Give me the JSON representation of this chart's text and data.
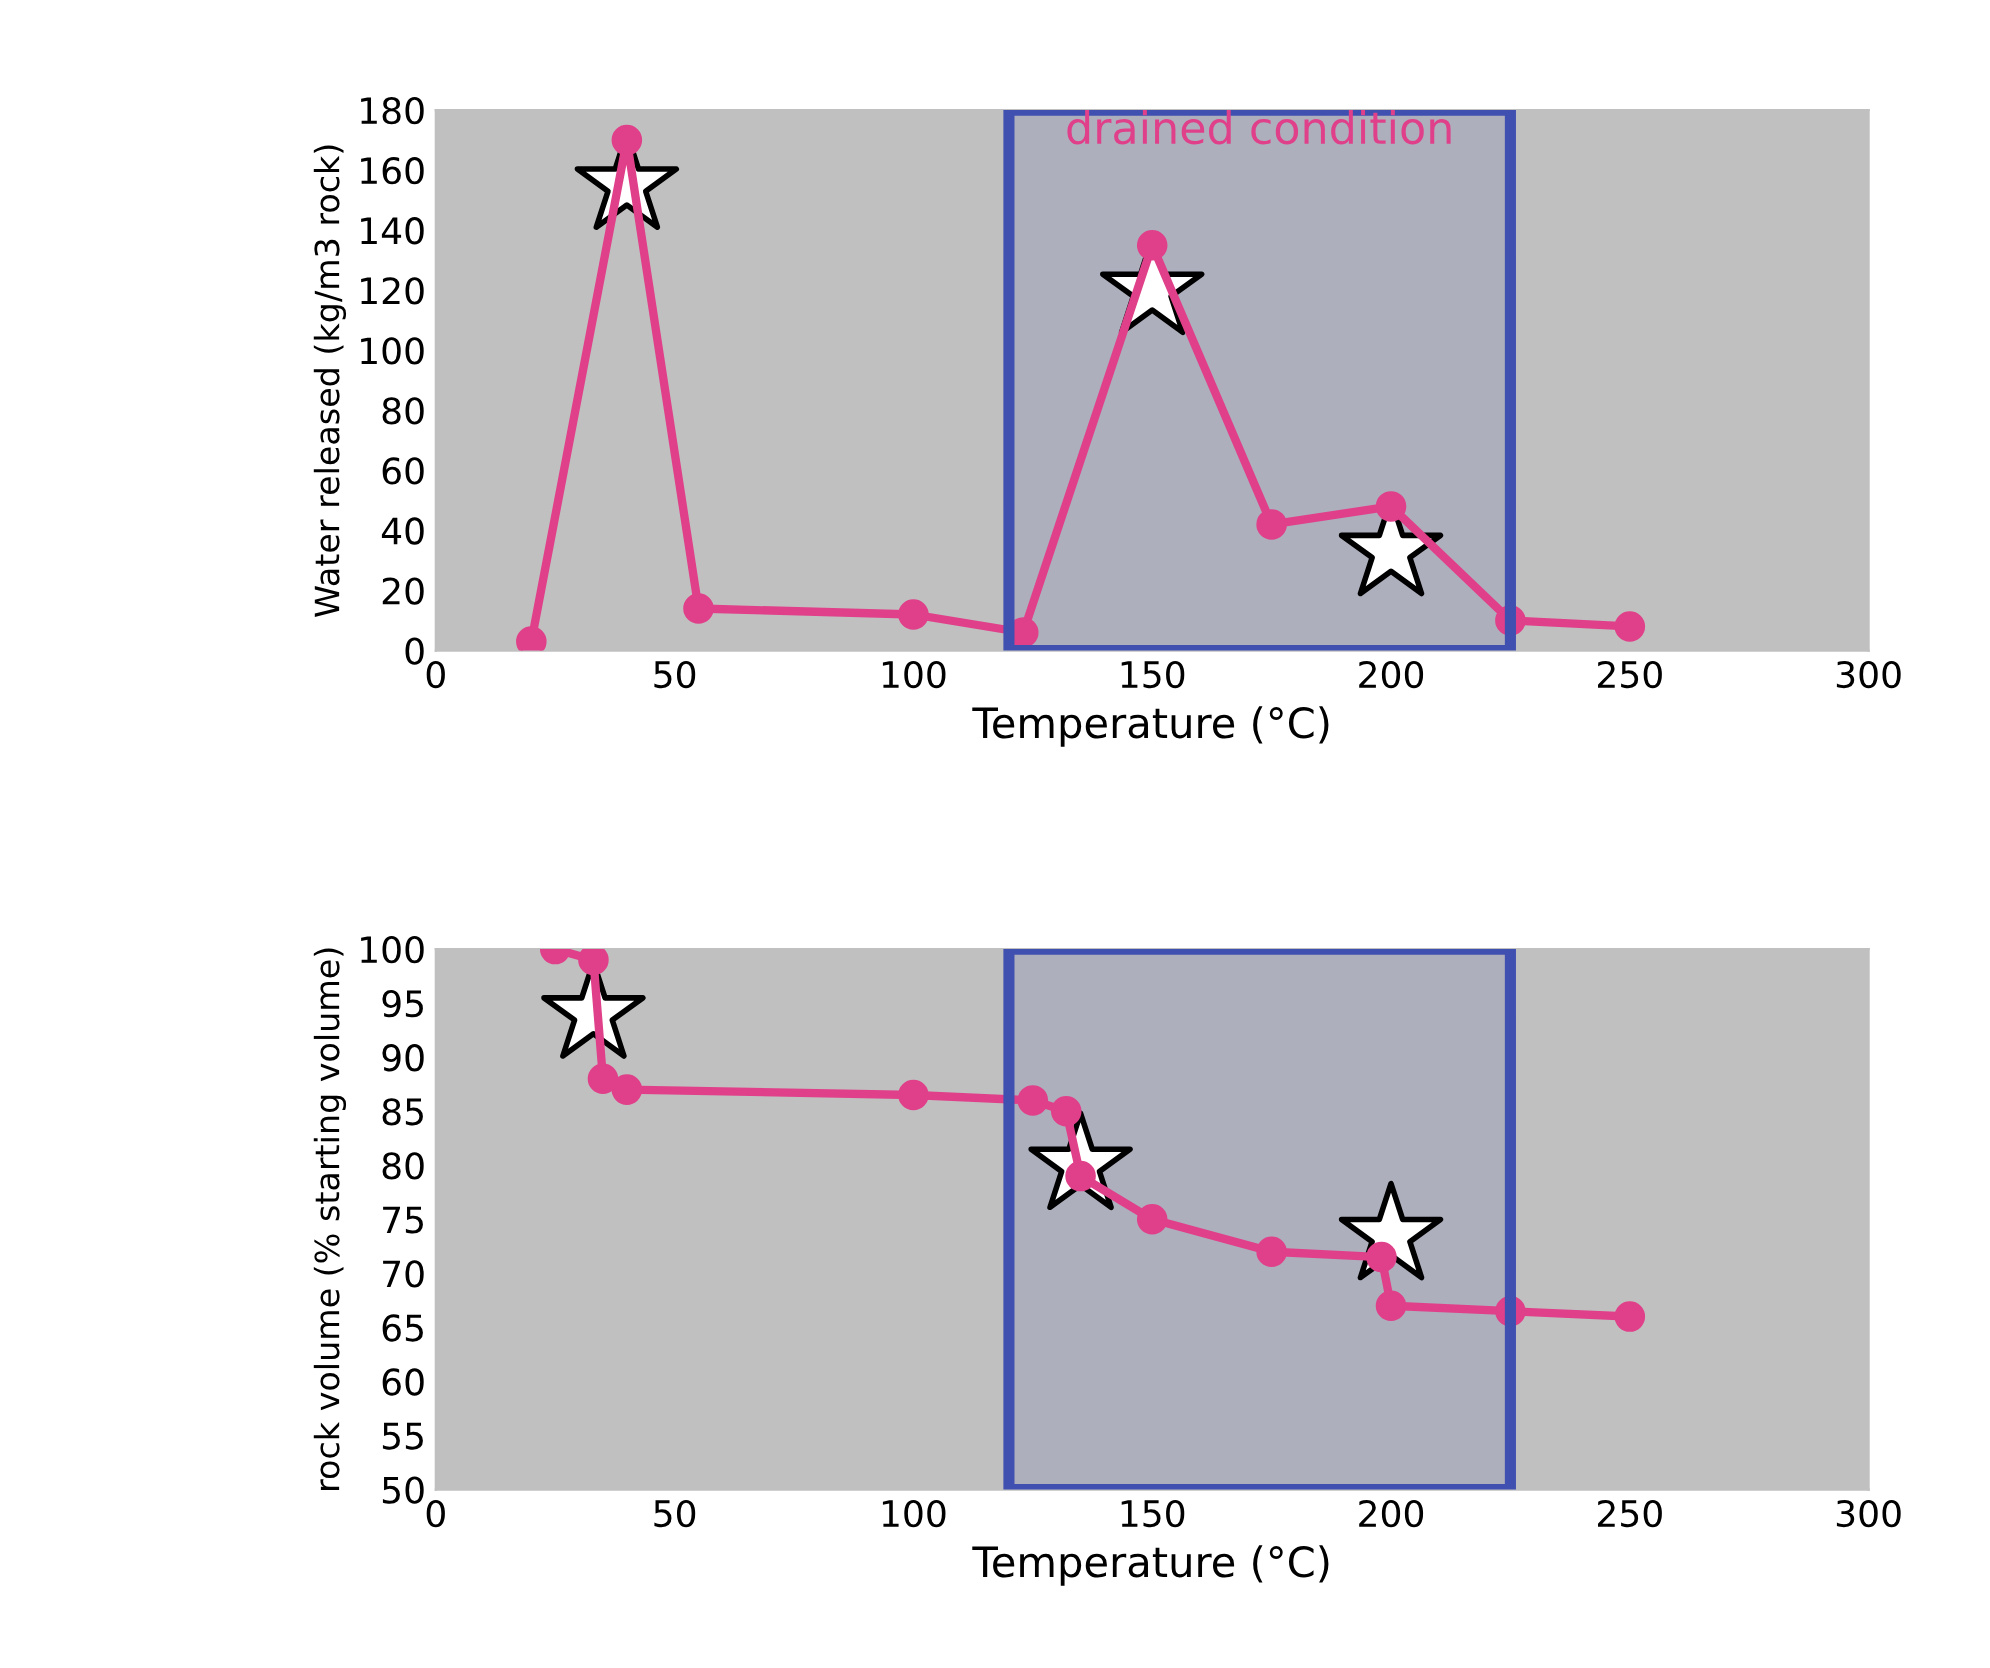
{
  "chart_data": [
    {
      "type": "line",
      "xlabel": "Temperature (°C)",
      "ylabel": "Water released (kg/m3 rock)",
      "xlim": [
        0,
        300
      ],
      "xticks": [
        0,
        50,
        100,
        150,
        200,
        250,
        300
      ],
      "ylim": [
        0,
        180
      ],
      "yticks": [
        0,
        20,
        40,
        60,
        80,
        100,
        120,
        140,
        160,
        180
      ],
      "grid": false,
      "legend": false,
      "series": [
        {
          "color": "#e0408a",
          "marker": "circle",
          "x": [
            20,
            40,
            55,
            100,
            123,
            150,
            175,
            200,
            225,
            250
          ],
          "values": [
            3,
            170,
            14,
            12,
            6,
            135,
            42,
            48,
            10,
            8
          ]
        },
        {
          "type": "scatter",
          "color": "#ffffff",
          "marker": "star",
          "x": [
            40,
            150,
            200
          ],
          "values": [
            155,
            120,
            33
          ]
        }
      ],
      "bands": [
        {
          "axis": "x",
          "from": 120,
          "to": 225,
          "label": "drained condition",
          "color": "#4050b0"
        }
      ]
    },
    {
      "type": "line",
      "xlabel": "Temperature (°C)",
      "ylabel": "rock volume (% starting volume)",
      "xlim": [
        0,
        300
      ],
      "xticks": [
        0,
        50,
        100,
        150,
        200,
        250,
        300
      ],
      "ylim": [
        50,
        100
      ],
      "yticks": [
        50,
        55,
        60,
        65,
        70,
        75,
        80,
        85,
        90,
        95,
        100
      ],
      "grid": false,
      "legend": false,
      "series": [
        {
          "color": "#e0408a",
          "marker": "circle",
          "x": [
            25,
            33,
            35,
            40,
            100,
            125,
            132,
            135,
            150,
            175,
            198,
            200,
            225,
            250
          ],
          "values": [
            100,
            99,
            88,
            87,
            86.5,
            86,
            85,
            79,
            75,
            72,
            71.5,
            67,
            66.5,
            66
          ]
        },
        {
          "type": "scatter",
          "color": "#ffffff",
          "marker": "star",
          "x": [
            33,
            135,
            200
          ],
          "values": [
            94,
            80,
            73.5
          ]
        }
      ],
      "bands": [
        {
          "axis": "x",
          "from": 120,
          "to": 225,
          "color": "#4050b0"
        }
      ]
    }
  ]
}
